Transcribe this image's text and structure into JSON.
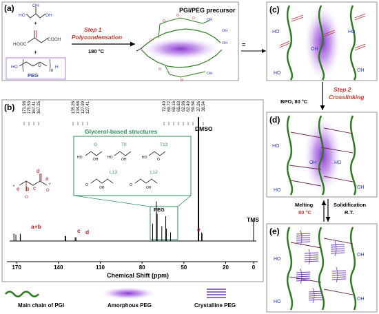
{
  "panels": {
    "a": "(a)",
    "b": "(b)",
    "c": "(c)",
    "d": "(d)",
    "e": "(e)"
  },
  "scheme": {
    "glycerol_oh": "OH",
    "ho": "HO",
    "diacid_left": "HOOC",
    "diacid_right": "COOH",
    "peg_ho": "HO",
    "peg_h": "H",
    "peg_n": "n",
    "peg_label": "PEG",
    "step1_title": "Step 1",
    "step1_name": "Polycondensation",
    "step1_temp": "180 °C",
    "precursor_title": "PGI/PEG precursor",
    "equals": "=",
    "step2_title": "Step 2",
    "step2_name": "Crosslinking",
    "step2_cond": "BPO, 80 °C",
    "melting": "Melting",
    "melting_temp": "80 °C",
    "solidification": "Solidification",
    "solid_temp": "R.T."
  },
  "nmr": {
    "peak_labels_left": [
      "171.96",
      "170.53",
      "167.41",
      "167.25"
    ],
    "peak_labels_mid": [
      "135.26",
      "134.68",
      "127.99",
      "127.41"
    ],
    "peak_labels_right": [
      "72.40",
      "69.72",
      "69.15",
      "65.83",
      "62.98",
      "62.49",
      "59.54"
    ],
    "peak_labels_dmso": [
      "37.26",
      "36.94"
    ],
    "inset_title": "Glycerol-based structures",
    "struct_G": "G",
    "struct_T0": "T0",
    "struct_T13": "T13",
    "struct_L13": "L13",
    "struct_L12": "L12",
    "annot_ab": "a+b",
    "annot_c": "c",
    "annot_d": "d",
    "annot_e": "e",
    "annot_dmso": "DMSO",
    "annot_tms": "TMS",
    "annot_peg": "PEG",
    "frag_a": "a",
    "frag_b": "b",
    "frag_c": "c",
    "frag_d": "d",
    "frag_e": "e",
    "xlabel": "Chemical Shift (ppm)",
    "ticks": [
      "170",
      "140",
      "110",
      "80",
      "50",
      "20",
      "0"
    ]
  },
  "legend": {
    "main_chain": "Main chain of PGI",
    "amorphous": "Amorphous PEG",
    "crystalline": "Crystalline PEG"
  },
  "chart_data": {
    "type": "line",
    "title": "",
    "xlabel": "Chemical Shift (ppm)",
    "ylabel": "",
    "xlim": [
      175,
      -2
    ],
    "x_ticks": [
      170,
      140,
      110,
      80,
      50,
      20,
      0
    ],
    "series": [
      {
        "x": [
          171.96,
          170.53,
          167.41,
          167.25,
          135.26,
          134.68,
          127.99,
          127.41,
          72.4,
          69.72,
          69.15,
          65.83,
          62.98,
          62.49,
          59.54,
          39.5,
          37.26,
          36.94,
          0
        ],
        "y": [
          0.06,
          0.05,
          0.06,
          0.05,
          0.04,
          0.04,
          0.03,
          0.03,
          0.14,
          0.32,
          0.22,
          0.12,
          0.2,
          0.1,
          0.07,
          1.0,
          0.07,
          0.06,
          0.16
        ]
      }
    ]
  },
  "colors": {
    "chain_green": "#2e7a20",
    "amorphous_purple": "#9b59d6",
    "crystalline_purple": "#6b3bb0",
    "step_red": "#c0392b",
    "oh_blue": "#2c3fb5",
    "ester_red": "#b83232",
    "annot_red": "#b02020",
    "panel_gray": "#808080",
    "inset_green": "#2e8b57"
  }
}
